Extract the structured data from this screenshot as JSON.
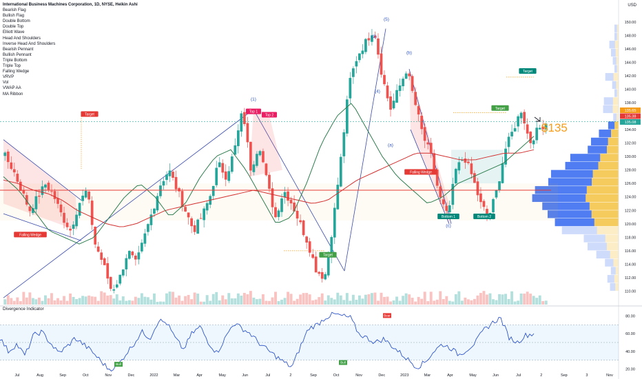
{
  "legend": {
    "title": "International Business Machines Corporation, 1D, NYSE, Heikin Ashi",
    "items": [
      "Bearish Flag",
      "Bullish Flag",
      "Double Bottom",
      "Double Top",
      "Elliott Wave",
      "Head And Shoulders",
      "Inverse Head And Shoulders",
      "Bearish Pennant",
      "Bullish Pennant",
      "Triple Bottom",
      "Triple Top",
      "Falling Wedge",
      "VRVP",
      "Vol",
      "VWAP AA",
      "MA Ribbon"
    ]
  },
  "currency": "USD",
  "big_price": "$135",
  "price_tags": [
    "135.65",
    "135.38",
    "135.08"
  ],
  "oscillator_title": "Divergence Indicator",
  "colors": {
    "up": "#26a69a",
    "down": "#ef5350",
    "vp_up": "#3d6ff0",
    "vp_down": "#f5c242",
    "ema_red": "#d32f2f",
    "ema_green": "#2e7d4f",
    "wedge": "#3949ab",
    "osc": "#2f55c8"
  },
  "chart_data": [
    {
      "type": "line",
      "title": "International Business Machines Corporation, 1D, NYSE, Heikin Ashi",
      "ylim": [
        108,
        151
      ],
      "y_ticks": [
        "150.00",
        "148.00",
        "146.00",
        "144.00",
        "142.00",
        "140.00",
        "138.00",
        "136.00",
        "134.00",
        "132.00",
        "130.00",
        "128.00",
        "126.00",
        "124.00",
        "122.00",
        "120.00",
        "118.00",
        "116.00",
        "114.00",
        "112.00",
        "110.00"
      ],
      "x_ticks": [
        "Jul",
        "Aug",
        "Sep",
        "Oct",
        "Nov",
        "Dec",
        "2022",
        "Mar",
        "Apr",
        "May",
        "Jun",
        "Jul",
        "2",
        "Sep",
        "Oct",
        "Nov",
        "Dec",
        "2023",
        "Mar",
        "Apr",
        "May",
        "Jun",
        "Jul",
        "2",
        "Sep",
        "3",
        "Nov"
      ],
      "series": [
        {
          "values": [
            130,
            128,
            125,
            122,
            124,
            126,
            124,
            121,
            119,
            123,
            125,
            117,
            114,
            110,
            112,
            116,
            114,
            118,
            122,
            126,
            128,
            125,
            122,
            119,
            121,
            124,
            129,
            127,
            131,
            137,
            128,
            132,
            126,
            121,
            125,
            123,
            120,
            117,
            113,
            112,
            120,
            130,
            141,
            145,
            147,
            149,
            142,
            137,
            140,
            143,
            138,
            133,
            130,
            124,
            121,
            128,
            130,
            127,
            123,
            121,
            125,
            131,
            134,
            137,
            132,
            134,
            135
          ]
        },
        {
          "values": [
            126.5,
            126,
            125,
            124.5,
            123.5,
            122,
            121,
            120,
            119.5,
            120,
            121,
            122,
            122.5,
            123,
            123.5,
            124,
            124.5,
            125,
            124.5,
            124,
            123.5,
            123,
            123.5,
            125,
            126.5,
            127.5,
            128.5,
            129.5,
            130.5,
            130.5,
            130,
            129.5,
            129.5,
            130,
            130.5,
            130.5,
            131
          ]
        },
        {
          "values": [
            127,
            125,
            122,
            119,
            118,
            117,
            118,
            121,
            124,
            126,
            124,
            121,
            123,
            127,
            130,
            131,
            128,
            124,
            120,
            121,
            126,
            132,
            136,
            138,
            134,
            130,
            127,
            125,
            123,
            124,
            126,
            127,
            128,
            129,
            131,
            133
          ]
        }
      ],
      "annotations": [
        "(1)",
        "(3)",
        "(5)",
        "(4)",
        "(a)",
        "(b)",
        "(c)",
        "Top 1",
        "Top 2",
        "Bottom 1",
        "Bottom 2",
        "Target",
        "Target",
        "Target",
        "Target",
        "Falling Wedge",
        "Falling Wedge"
      ]
    },
    {
      "type": "line",
      "title": "Divergence Indicator",
      "ylim": [
        15,
        85
      ],
      "y_ticks": [
        "80.00",
        "60.00",
        "40.00",
        "20.00"
      ],
      "series": [
        {
          "values": [
            55,
            40,
            48,
            35,
            58,
            62,
            50,
            38,
            45,
            55,
            48,
            40,
            30,
            20,
            22,
            36,
            48,
            62,
            55,
            75,
            72,
            55,
            42,
            60,
            68,
            50,
            38,
            55,
            72,
            66,
            60,
            50,
            42,
            35,
            28,
            22,
            45,
            66,
            70,
            78,
            82,
            80,
            78,
            60,
            55,
            50,
            54,
            46,
            38,
            30,
            22,
            28,
            40,
            48,
            44,
            36,
            42,
            50,
            64,
            72,
            78,
            56,
            50,
            58,
            60
          ]
        }
      ],
      "markers": [
        "Bull",
        "Bull",
        "Bear"
      ]
    }
  ]
}
